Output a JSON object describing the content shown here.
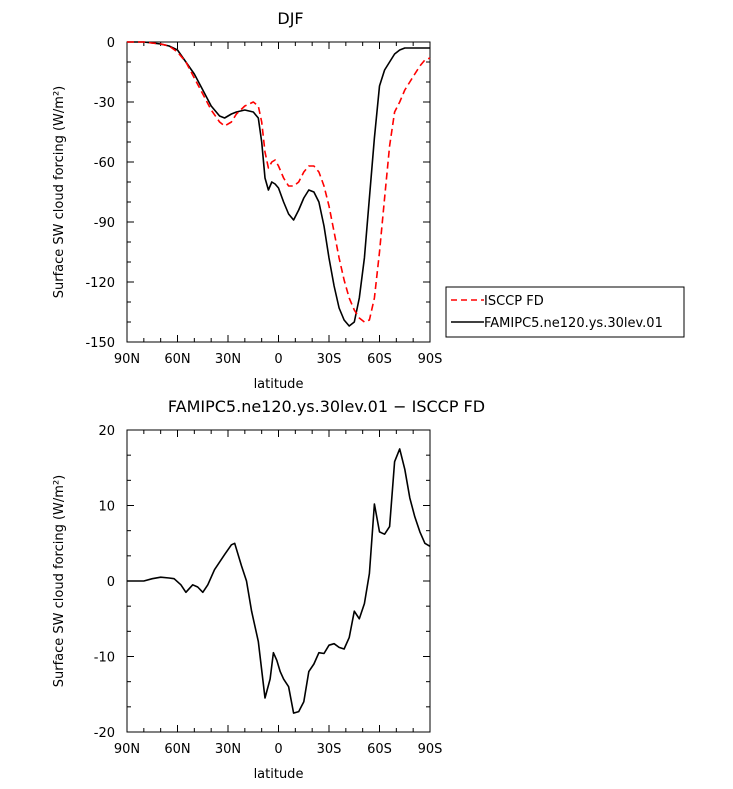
{
  "chart_data": [
    {
      "type": "line",
      "title": "DJF",
      "xlabel": "latitude",
      "ylabel": "Surface SW cloud forcing (W/m²)",
      "xlim": [
        -90,
        90
      ],
      "ylim": [
        -150,
        0
      ],
      "xticks": [
        -90,
        -60,
        -30,
        0,
        30,
        60,
        90
      ],
      "xticklabels": [
        "90N",
        "60N",
        "30N",
        "0",
        "30S",
        "60S",
        "90S"
      ],
      "yticks": [
        0,
        -30,
        -60,
        -90,
        -120,
        -150
      ],
      "yticklabels": [
        "0",
        "-30",
        "-60",
        "-90",
        "-120",
        "-150"
      ],
      "legend": {
        "placement": "right-outside"
      },
      "series": [
        {
          "name": "ISCCP FD",
          "color": "#ff0000",
          "dash": "dashed",
          "x": [
            -90,
            -80,
            -70,
            -65,
            -60,
            -55,
            -50,
            -45,
            -40,
            -35,
            -32,
            -28,
            -25,
            -20,
            -15,
            -12,
            -10,
            -8,
            -6,
            -4,
            -2,
            0,
            3,
            6,
            9,
            12,
            15,
            18,
            21,
            24,
            27,
            30,
            33,
            36,
            39,
            42,
            45,
            48,
            51,
            54,
            57,
            60,
            63,
            66,
            69,
            72,
            75,
            78,
            81,
            84,
            87,
            90
          ],
          "y": [
            0,
            0,
            -1,
            -2,
            -5,
            -10,
            -18,
            -26,
            -34,
            -40,
            -42,
            -40,
            -36,
            -32,
            -30,
            -32,
            -40,
            -55,
            -63,
            -60,
            -59,
            -62,
            -68,
            -72,
            -72,
            -70,
            -65,
            -62,
            -62,
            -65,
            -72,
            -82,
            -95,
            -108,
            -119,
            -128,
            -134,
            -138,
            -140,
            -139,
            -128,
            -105,
            -78,
            -52,
            -35,
            -30,
            -24,
            -20,
            -16,
            -12,
            -9,
            -8
          ]
        },
        {
          "name": "FAMIPC5.ne120.ys.30lev.01",
          "color": "#000000",
          "dash": "solid",
          "x": [
            -90,
            -80,
            -70,
            -65,
            -60,
            -55,
            -50,
            -45,
            -40,
            -35,
            -32,
            -28,
            -25,
            -20,
            -15,
            -12,
            -10,
            -8,
            -6,
            -4,
            -2,
            0,
            3,
            6,
            9,
            12,
            15,
            18,
            21,
            24,
            27,
            30,
            33,
            36,
            39,
            42,
            45,
            48,
            51,
            54,
            57,
            60,
            63,
            66,
            69,
            72,
            75,
            78,
            81,
            84,
            87,
            90
          ],
          "y": [
            0,
            0,
            -1,
            -2,
            -4,
            -10,
            -16,
            -24,
            -32,
            -37,
            -38,
            -36,
            -35,
            -34,
            -35,
            -38,
            -50,
            -68,
            -74,
            -70,
            -71,
            -73,
            -80,
            -86,
            -89,
            -84,
            -78,
            -74,
            -75,
            -80,
            -92,
            -108,
            -122,
            -133,
            -139,
            -142,
            -140,
            -128,
            -108,
            -78,
            -48,
            -22,
            -14,
            -10,
            -6,
            -4,
            -3,
            -3,
            -3,
            -3,
            -3,
            -3
          ]
        }
      ]
    },
    {
      "type": "line",
      "title": "FAMIPC5.ne120.ys.30lev.01 − ISCCP FD",
      "xlabel": "latitude",
      "ylabel": "Surface SW cloud forcing (W/m²)",
      "xlim": [
        -90,
        90
      ],
      "ylim": [
        -20,
        20
      ],
      "xticks": [
        -90,
        -60,
        -30,
        0,
        30,
        60,
        90
      ],
      "xticklabels": [
        "90N",
        "60N",
        "30N",
        "0",
        "30S",
        "60S",
        "90S"
      ],
      "yticks": [
        20,
        10,
        0,
        -10,
        -20
      ],
      "yticklabels": [
        "20",
        "10",
        "0",
        "-10",
        "-20"
      ],
      "series": [
        {
          "name": "",
          "color": "#000000",
          "dash": "solid",
          "x": [
            -90,
            -80,
            -75,
            -70,
            -65,
            -62,
            -58,
            -55,
            -51,
            -48,
            -45,
            -42,
            -38,
            -35,
            -32,
            -28,
            -26,
            -22,
            -19,
            -16,
            -12,
            -8,
            -5,
            -3,
            -1,
            1,
            3,
            6,
            9,
            12,
            15,
            18,
            21,
            24,
            27,
            30,
            33,
            36,
            39,
            42,
            45,
            48,
            51,
            54,
            57,
            60,
            63,
            66,
            69,
            72,
            75,
            78,
            81,
            84,
            87,
            90
          ],
          "y": [
            0,
            0,
            0.3,
            0.5,
            0.4,
            0.3,
            -0.5,
            -1.5,
            -0.5,
            -0.8,
            -1.5,
            -0.5,
            1.5,
            2.5,
            3.5,
            4.8,
            5,
            2,
            0,
            -4,
            -8,
            -15.5,
            -13,
            -9.5,
            -10.5,
            -12,
            -13,
            -14,
            -17.5,
            -17.3,
            -16,
            -12,
            -11,
            -9.5,
            -9.6,
            -8.5,
            -8.3,
            -8.8,
            -9,
            -7.5,
            -4,
            -5,
            -3,
            1,
            10.2,
            6.5,
            6.2,
            7.2,
            15.8,
            17.5,
            14.8,
            11,
            8.5,
            6.5,
            5,
            4.6
          ]
        }
      ]
    }
  ]
}
